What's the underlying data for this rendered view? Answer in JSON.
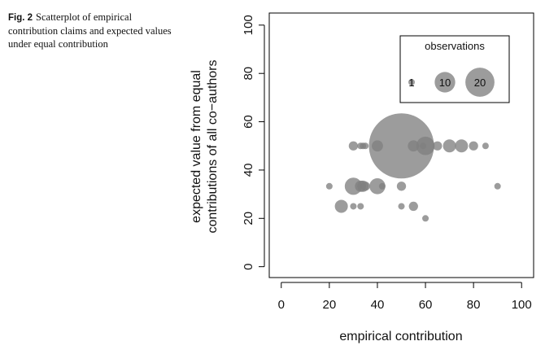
{
  "caption": {
    "label": "Fig. 2",
    "text": "Scatterplot of empirical contribution claims and expected values under equal contribution"
  },
  "chart_data": {
    "type": "scatter",
    "title": "",
    "xlabel": "empirical contribution",
    "ylabel_lines": [
      "expected value from equal",
      "contributions of all co−authors"
    ],
    "xlim": [
      -5,
      105
    ],
    "ylim": [
      -4.5,
      105
    ],
    "xticks": [
      0,
      20,
      40,
      60,
      80,
      100
    ],
    "yticks": [
      0,
      20,
      40,
      60,
      80,
      100
    ],
    "grid": false,
    "point_color": "#808080",
    "size_encoding": "bubble area proportional to number of observations",
    "legend": {
      "title": "observations",
      "placement": "top-right",
      "entries": [
        {
          "label": "1",
          "count": 1
        },
        {
          "label": "10",
          "count": 10
        },
        {
          "label": "20",
          "count": 20
        }
      ]
    },
    "points": [
      {
        "x": 30,
        "y": 50,
        "n": 2
      },
      {
        "x": 33,
        "y": 50,
        "n": 1
      },
      {
        "x": 34,
        "y": 50,
        "n": 1
      },
      {
        "x": 35,
        "y": 50,
        "n": 1
      },
      {
        "x": 40,
        "y": 50,
        "n": 3
      },
      {
        "x": 50,
        "y": 50,
        "n": 100
      },
      {
        "x": 55,
        "y": 50,
        "n": 3
      },
      {
        "x": 59,
        "y": 50,
        "n": 1
      },
      {
        "x": 60,
        "y": 50,
        "n": 8
      },
      {
        "x": 65,
        "y": 50,
        "n": 2
      },
      {
        "x": 70,
        "y": 50,
        "n": 4
      },
      {
        "x": 75,
        "y": 50,
        "n": 4
      },
      {
        "x": 80,
        "y": 50,
        "n": 2
      },
      {
        "x": 85,
        "y": 50,
        "n": 1
      },
      {
        "x": 20,
        "y": 33.3,
        "n": 1
      },
      {
        "x": 30,
        "y": 33.3,
        "n": 7
      },
      {
        "x": 33,
        "y": 33.3,
        "n": 3
      },
      {
        "x": 34,
        "y": 33.3,
        "n": 3
      },
      {
        "x": 35,
        "y": 33.3,
        "n": 2
      },
      {
        "x": 40,
        "y": 33.3,
        "n": 6
      },
      {
        "x": 42,
        "y": 33.3,
        "n": 1
      },
      {
        "x": 50,
        "y": 33.3,
        "n": 2
      },
      {
        "x": 90,
        "y": 33.3,
        "n": 1
      },
      {
        "x": 25,
        "y": 25,
        "n": 4
      },
      {
        "x": 30,
        "y": 25,
        "n": 1
      },
      {
        "x": 33,
        "y": 25,
        "n": 1
      },
      {
        "x": 50,
        "y": 25,
        "n": 1
      },
      {
        "x": 55,
        "y": 25,
        "n": 2
      },
      {
        "x": 60,
        "y": 20,
        "n": 1
      }
    ]
  }
}
